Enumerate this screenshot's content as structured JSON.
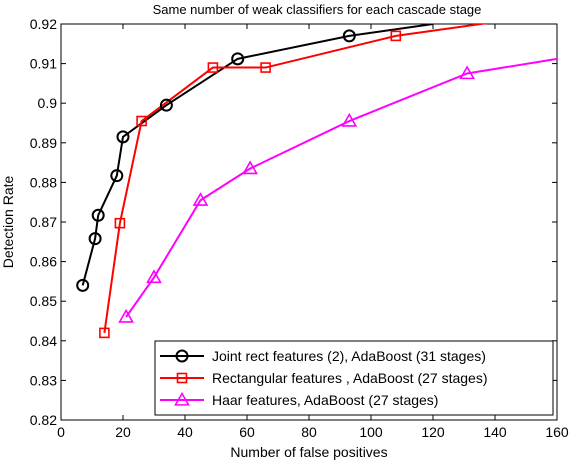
{
  "chart_data": {
    "type": "line",
    "title": "Same number of weak classifiers for each cascade stage",
    "xlabel": "Number of false positives",
    "ylabel": "Detection Rate",
    "xlim": [
      0,
      160
    ],
    "ylim": [
      0.82,
      0.92
    ],
    "xticks": [
      0,
      20,
      40,
      60,
      80,
      100,
      120,
      140,
      160
    ],
    "yticks": [
      0.82,
      0.83,
      0.84,
      0.85,
      0.86,
      0.87,
      0.88,
      0.89,
      0.9,
      0.91,
      0.92
    ],
    "grid": false,
    "legend_position": "bottom-right",
    "series": [
      {
        "name": "Joint rect features (2), AdaBoost (31 stages)",
        "color": "#000000",
        "marker": "circle",
        "x": [
          7,
          11,
          12,
          18,
          20,
          34,
          57,
          93,
          120
        ],
        "y": [
          0.854,
          0.8658,
          0.8717,
          0.8817,
          0.8915,
          0.8995,
          0.9112,
          0.917,
          0.92
        ]
      },
      {
        "name": "Rectangular features , AdaBoost (27 stages)",
        "color": "#ff0000",
        "marker": "square",
        "x": [
          14,
          19,
          26,
          49,
          66,
          108,
          140
        ],
        "y": [
          0.842,
          0.8697,
          0.8955,
          0.909,
          0.909,
          0.917,
          0.9205
        ]
      },
      {
        "name": "Haar features, AdaBoost (27 stages)",
        "color": "#ff00ff",
        "marker": "triangle",
        "x": [
          21,
          30,
          45,
          61,
          93,
          131,
          160
        ],
        "y": [
          0.846,
          0.856,
          0.8755,
          0.8835,
          0.8955,
          0.9075,
          0.9112
        ]
      }
    ]
  }
}
